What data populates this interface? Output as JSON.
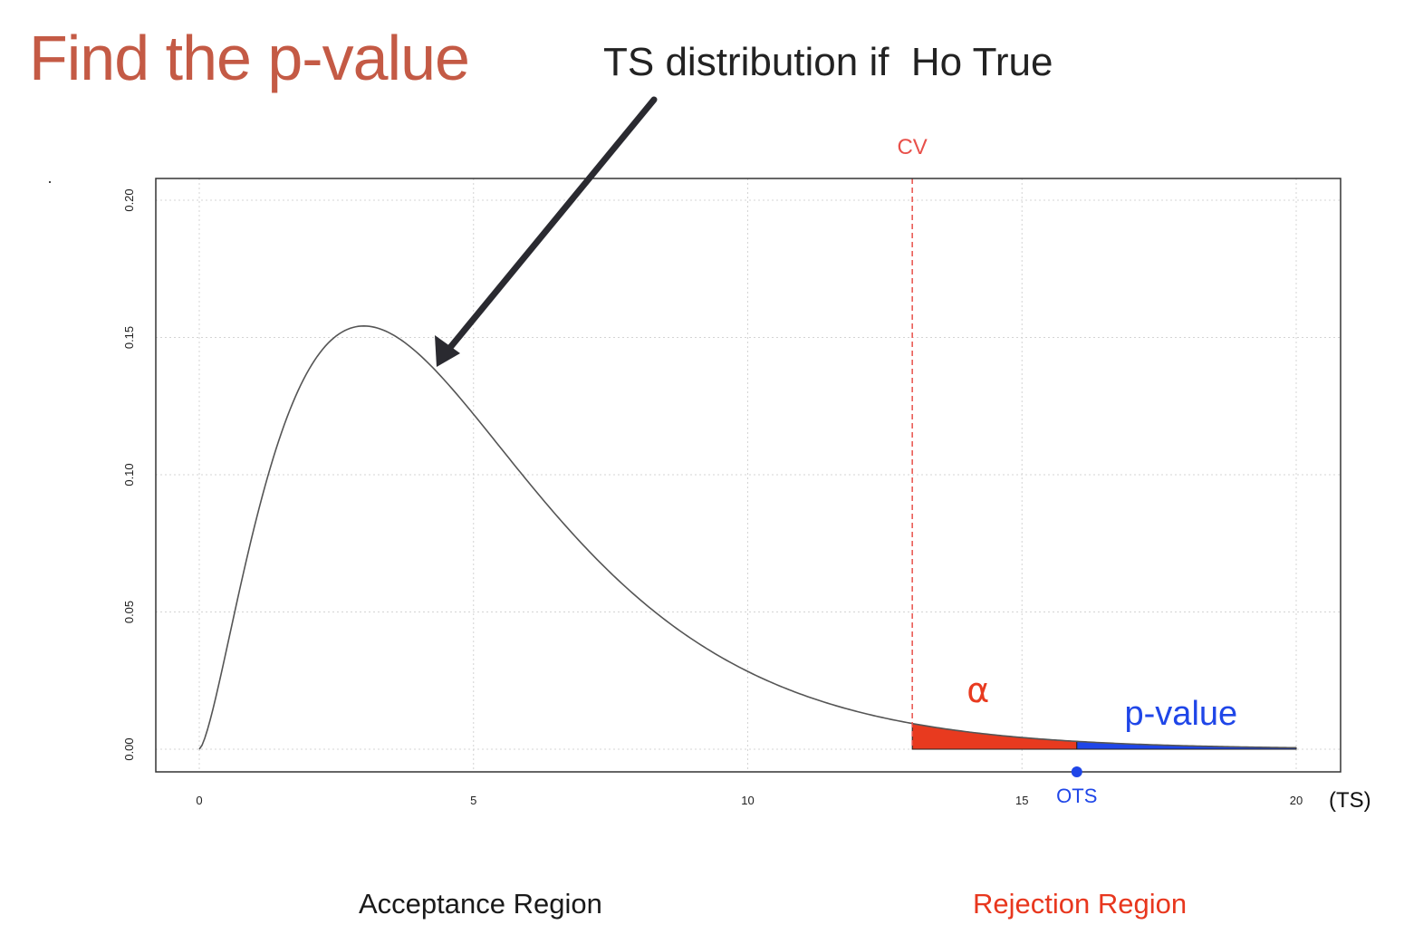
{
  "slide": {
    "title": "Find the p-value",
    "annotation": "TS distribution if  Ho True",
    "acceptance_label": "Acceptance Region",
    "rejection_label": "Rejection Region"
  },
  "colors": {
    "title": "#c45a45",
    "alpha_fill": "#e83a1f",
    "pvalue_fill": "#1f46e8",
    "cv_line": "#e8504a",
    "curve": "#555555"
  },
  "chart_data": {
    "type": "area",
    "distribution": "chi-square",
    "degrees_of_freedom": 5,
    "xlim": [
      0,
      20
    ],
    "ylim": [
      0,
      0.2
    ],
    "x_ticks": [
      "0",
      "5",
      "10",
      "15",
      "20"
    ],
    "y_ticks": [
      "0.00",
      "0.05",
      "0.10",
      "0.15",
      "0.20"
    ],
    "x_unit_label": "(TS)",
    "grid": true,
    "critical_value": {
      "label": "CV",
      "x": 13
    },
    "observed_statistic": {
      "label": "OTS",
      "x": 16
    },
    "shaded_regions": [
      {
        "label": "α",
        "from": 13,
        "to": 16
      },
      {
        "label": "p-value",
        "from": 16,
        "to": 20
      }
    ]
  }
}
